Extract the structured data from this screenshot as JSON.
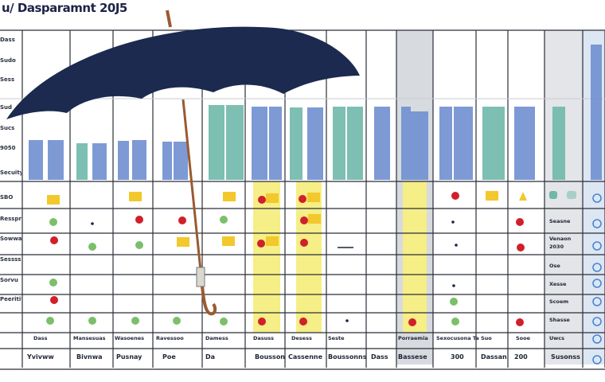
{
  "header": {
    "title": "u/ Dasparamnt 20J5"
  },
  "row_labels": [
    "Dass",
    "Sudo",
    "Sess",
    "Sud",
    "Sucs",
    "9050",
    "Secuity",
    "SBO",
    "Resspre",
    "Sowwass",
    "Sessss",
    "Sorvu",
    "Peeritiy"
  ],
  "panel_labels": {
    "row_6": [
      "Seasne"
    ],
    "row_7": [
      "Venaon",
      "2030"
    ],
    "row_8": [
      "Ose"
    ],
    "row_9": [
      "Xesse"
    ],
    "row_10": [
      "Scoem"
    ],
    "row_11": [
      "Shasse"
    ],
    "row_12": [
      "Uwcs"
    ]
  },
  "summary_row": [
    "Dass",
    "Mansesuas",
    "Wasoenes",
    "Ravessoo",
    "Damess",
    "Dasuss",
    "Desess",
    "Seste",
    "Porraemia",
    "Sexocusona Tass",
    "Suo",
    "Sooe"
  ],
  "footer_row": [
    "Yvivww",
    "Bivnwa",
    "Pusnay",
    "Poe",
    "Da",
    "Bousson",
    "Cassenne",
    "Boussonns",
    "Dass",
    "Bassese",
    "300",
    "Dassan",
    "200",
    "Susonss"
  ],
  "colors": {
    "header_navy": "#1c2446",
    "umbrella_canopy": "#1b2a4e",
    "umbrella_shaft": "#9a5a30",
    "bar_blue": "#6f8fd0",
    "bar_teal": "#6fb8aa",
    "dot_red": "#d0202a",
    "dot_green": "#7cbf6a",
    "dot_yellow": "#f2c82c",
    "highlight_yellow": "#f6ee86"
  }
}
